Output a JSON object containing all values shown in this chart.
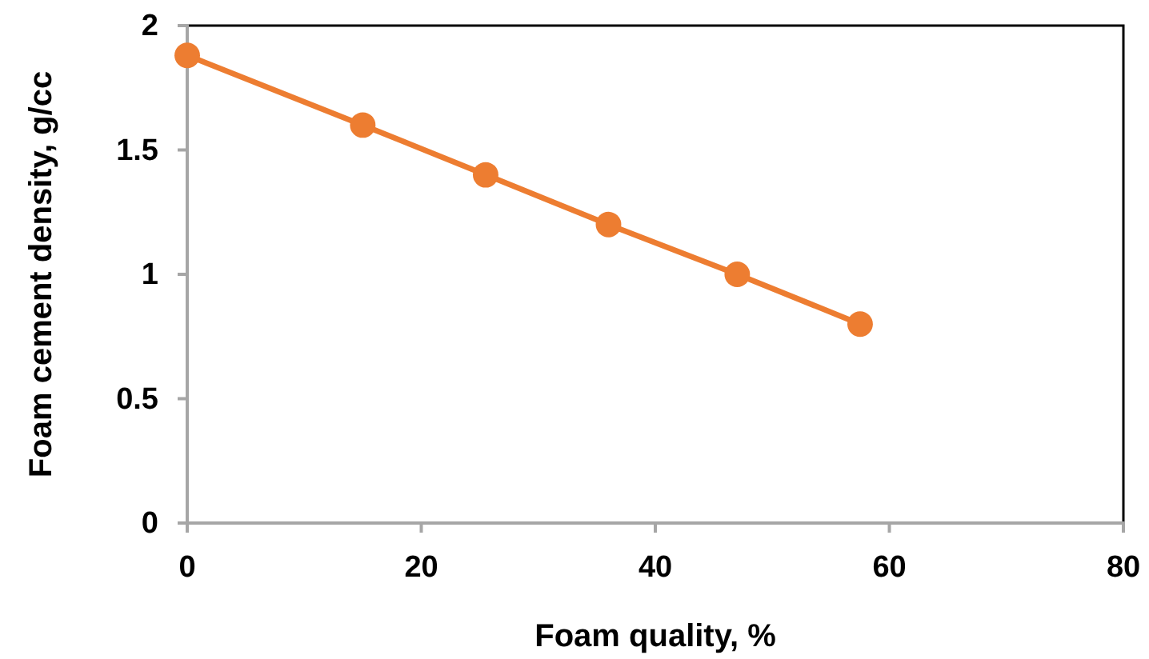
{
  "chart_data": {
    "type": "line",
    "xlabel": "Foam quality, %",
    "ylabel": "Foam cement density, g/cc",
    "x": [
      0,
      15,
      25.5,
      36,
      47,
      57.5
    ],
    "series": [
      {
        "color": "#ed7d31",
        "values": [
          1.88,
          1.6,
          1.4,
          1.2,
          1.0,
          0.8
        ]
      }
    ],
    "xlim": [
      0,
      80
    ],
    "xticks": [
      0,
      20,
      40,
      60,
      80
    ],
    "ylim": [
      0,
      2
    ],
    "yticks": [
      0,
      0.5,
      1,
      1.5,
      2
    ],
    "marker": "circle",
    "line_style": "solid"
  }
}
